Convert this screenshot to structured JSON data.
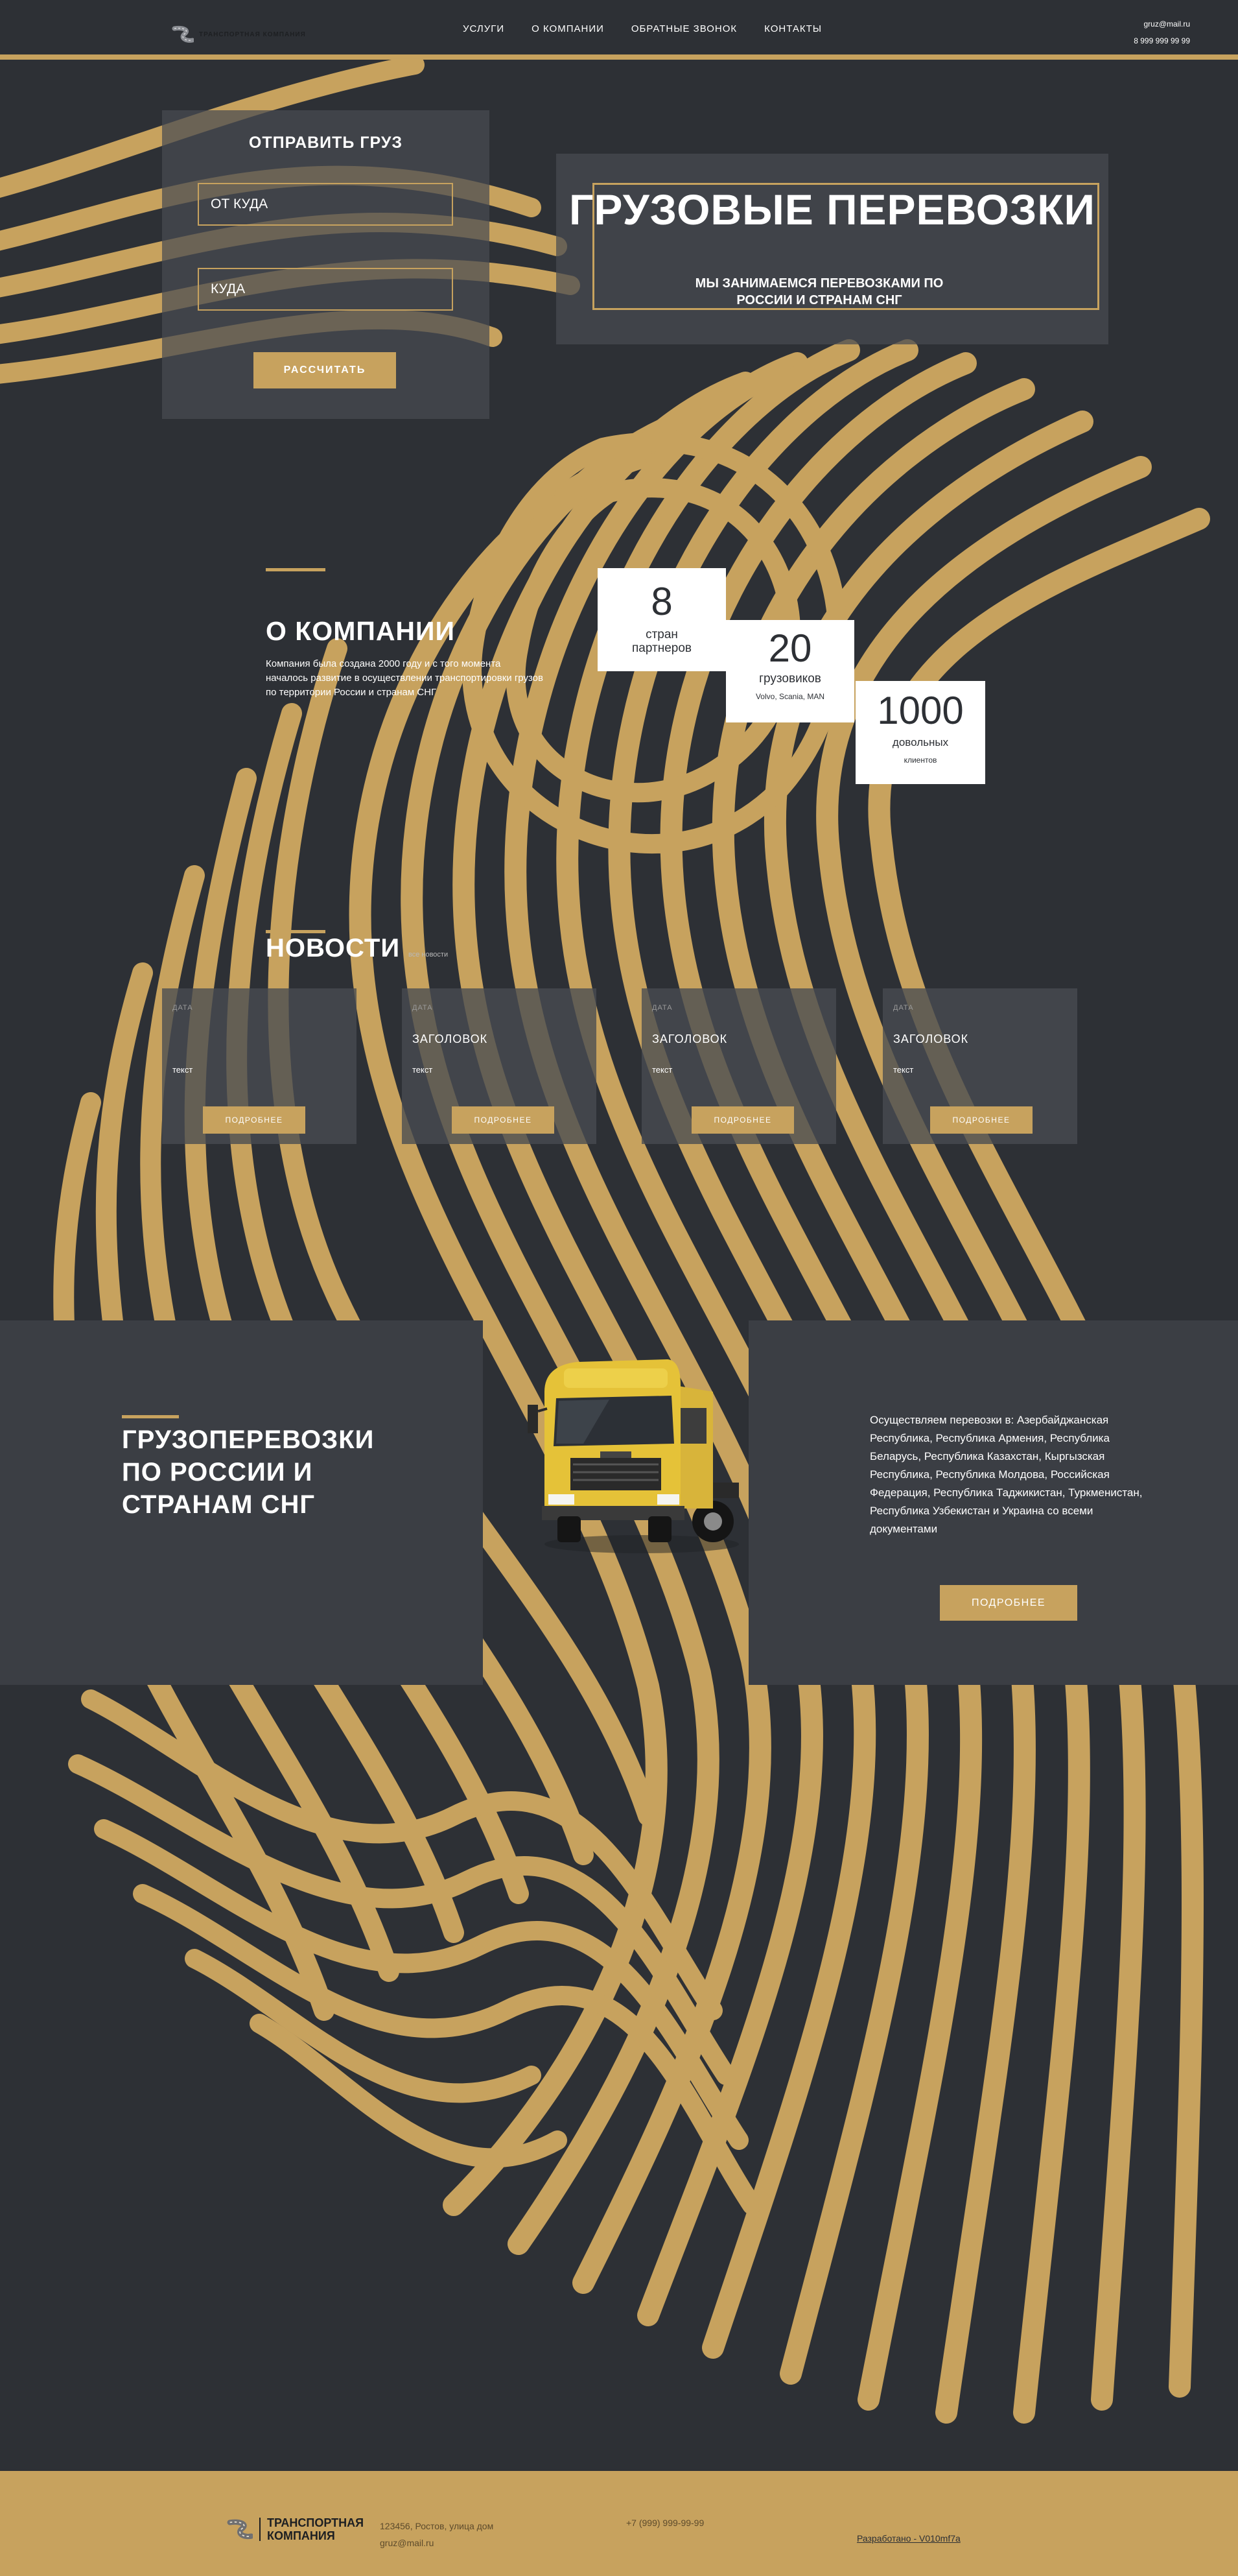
{
  "header": {
    "logo_text": "ТРАНСПОРТНАЯ КОМПАНИЯ",
    "nav": [
      "УСЛУГИ",
      "О КОМПАНИИ",
      "ОБРАТНЫЕ ЗВОНОК",
      "КОНТАКТЫ"
    ],
    "email": "gruz@mail.ru",
    "phone": "8 999 999 99 99"
  },
  "order_form": {
    "title": "ОТПРАВИТЬ ГРУЗ",
    "from_placeholder": "ОТ КУДА",
    "to_placeholder": "КУДА",
    "submit_label": "РАССЧИТАТЬ"
  },
  "hero": {
    "title": "ГРУЗОВЫЕ ПЕРЕВОЗКИ",
    "subtitle": "МЫ ЗАНИМАЕМСЯ ПЕРЕВОЗКАМИ ПО РОССИИ И СТРАНАМ СНГ"
  },
  "about": {
    "title": "О КОМПАНИИ",
    "text": "Компания была создана 2000 году и с того момента началось развитие в осуществлении транспортировки грузов по территории России и странам СНГ",
    "stats": [
      {
        "value": "8",
        "label": "стран партнеров",
        "sub": ""
      },
      {
        "value": "20",
        "label": "грузовиков",
        "sub": "Volvo, Scania, MAN"
      },
      {
        "value": "1000",
        "label": "довольных",
        "sub": "клиентов"
      }
    ]
  },
  "news": {
    "title": "НОВОСТИ",
    "all_link": "все новости",
    "cards": [
      {
        "date": "ДАТА",
        "heading": "",
        "text": "текст",
        "more": "ПОДРОБНЕЕ"
      },
      {
        "date": "ДАТА",
        "heading": "ЗАГОЛОВОК",
        "text": "текст",
        "more": "ПОДРОБНЕЕ"
      },
      {
        "date": "ДАТА",
        "heading": "ЗАГОЛОВОК",
        "text": "текст",
        "more": "ПОДРОБНЕЕ"
      },
      {
        "date": "ДАТА",
        "heading": "ЗАГОЛОВОК",
        "text": "текст",
        "more": "ПОДРОБНЕЕ"
      }
    ]
  },
  "transport": {
    "title": "ГРУЗОПЕРЕВОЗКИ ПО РОССИИ И СТРАНАМ СНГ",
    "text": "Осуществляем перевозки в: Азербайджанская Республика, Республика Армения, Республика Беларусь, Республика Казахстан, Кыргызская Республика, Республика Молдова, Российская Федерация, Республика Таджикистан, Туркменистан, Республика Узбекистан и Украина со всеми документами",
    "more": "ПОДРОБНЕЕ"
  },
  "footer": {
    "logo_text": "ТРАНСПОРТНАЯ КОМПАНИЯ",
    "address": "123456, Ростов, улица дом",
    "email": "gruz@mail.ru",
    "phone": "+7 (999) 999-99-99",
    "developer": "Разработано - V010mf7a"
  },
  "colors": {
    "background": "#2d3035",
    "accent": "#c7a25e",
    "panel": "#3b3e44"
  }
}
